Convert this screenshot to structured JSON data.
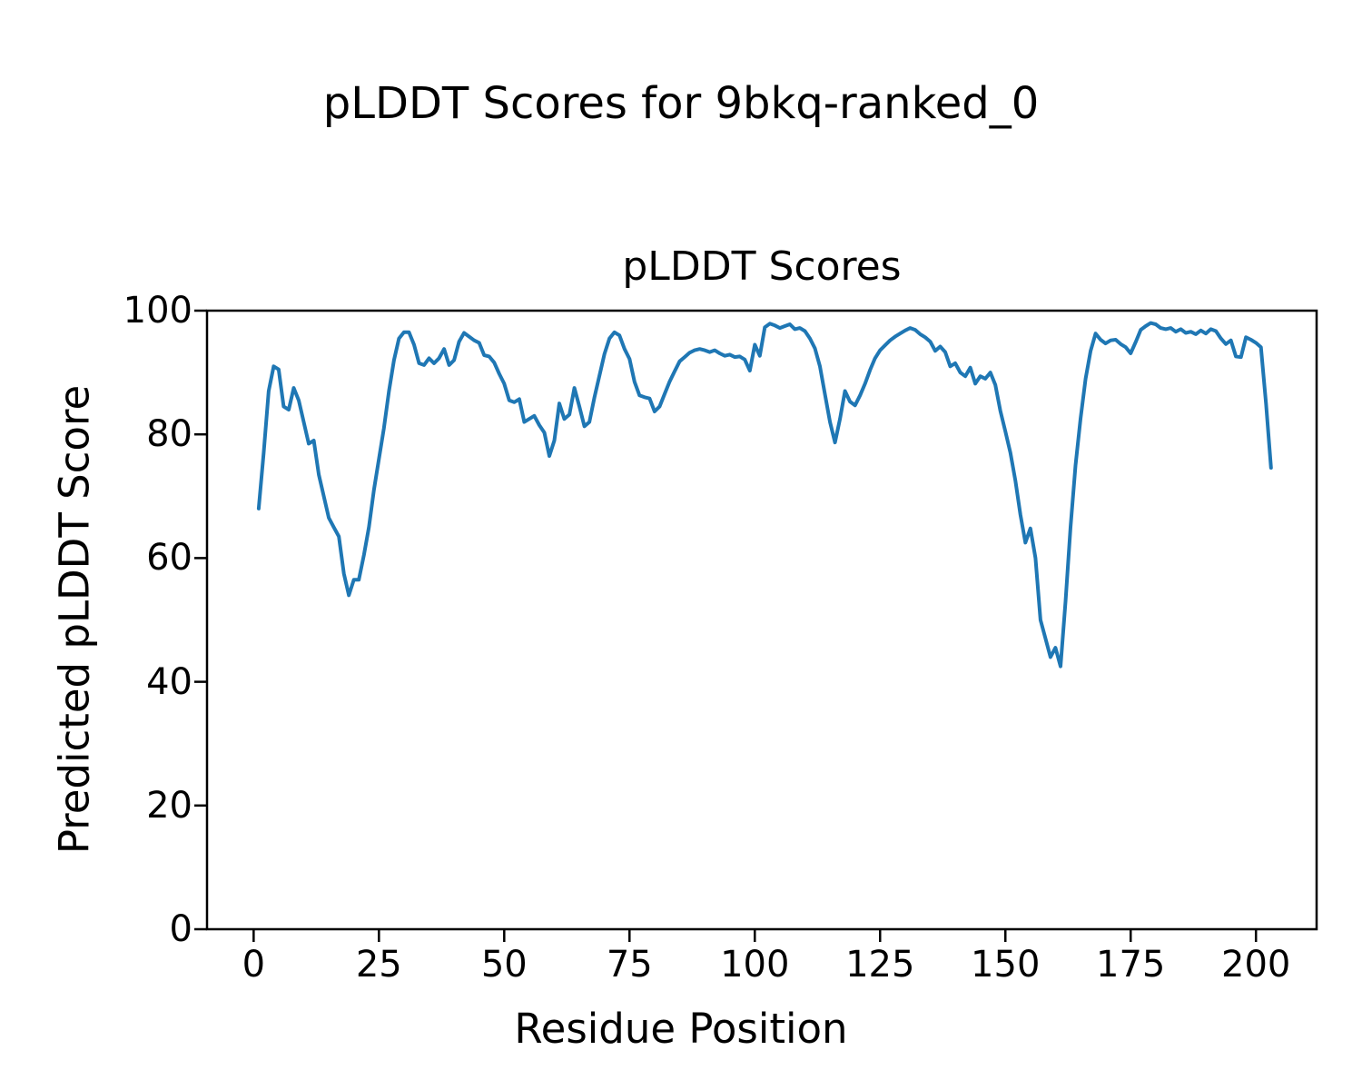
{
  "figure": {
    "suptitle": "pLDDT Scores for 9bkq-ranked_0",
    "background_color": "#ffffff",
    "text_color": "#000000"
  },
  "chart_data": {
    "type": "line",
    "title": "pLDDT Scores",
    "xlabel": "Residue Position",
    "ylabel": "Predicted pLDDT Score",
    "xlim": [
      -9.3,
      212.1
    ],
    "ylim": [
      0,
      100
    ],
    "x_ticks": [
      0,
      25,
      50,
      75,
      100,
      125,
      150,
      175,
      200
    ],
    "y_ticks": [
      0,
      20,
      40,
      60,
      80,
      100
    ],
    "grid": false,
    "legend": "none",
    "line_color": "#1f77b4",
    "line_width": 4,
    "spine_color": "#000000",
    "series": [
      {
        "name": "pLDDT",
        "x_start": 1,
        "x_step": 1,
        "values": [
          68,
          77,
          87,
          91,
          90.5,
          84.5,
          84,
          87.5,
          85.5,
          82,
          78.5,
          79,
          73.5,
          70,
          66.5,
          65,
          63.5,
          57.5,
          54,
          56.5,
          56.5,
          60.5,
          65,
          71,
          76,
          81,
          87,
          92,
          95.5,
          96.5,
          96.5,
          94.5,
          91.5,
          91.2,
          92.3,
          91.5,
          92.3,
          93.8,
          91.2,
          92,
          95,
          96.4,
          95.8,
          95.2,
          94.8,
          92.8,
          92.6,
          91.6,
          89.8,
          88.2,
          85.5,
          85.2,
          85.7,
          82,
          82.5,
          83,
          81.5,
          80.3,
          76.5,
          79,
          85,
          82.5,
          83.2,
          87.5,
          84.5,
          81.3,
          82,
          86,
          89.5,
          93,
          95.5,
          96.5,
          96,
          93.8,
          92.2,
          88.5,
          86.3,
          86,
          85.8,
          83.7,
          84.5,
          86.5,
          88.5,
          90.2,
          91.8,
          92.5,
          93.2,
          93.6,
          93.8,
          93.6,
          93.3,
          93.6,
          93.1,
          92.7,
          92.9,
          92.5,
          92.6,
          92.1,
          90.3,
          94.5,
          92.7,
          97.3,
          97.9,
          97.6,
          97.2,
          97.5,
          97.8,
          97,
          97.2,
          96.7,
          95.5,
          93.9,
          91,
          86.5,
          82,
          78.7,
          82.5,
          87,
          85.3,
          84.7,
          86.3,
          88.2,
          90.4,
          92.3,
          93.6,
          94.4,
          95.2,
          95.8,
          96.3,
          96.8,
          97.2,
          96.9,
          96.2,
          95.7,
          95,
          93.5,
          94.2,
          93.3,
          91,
          91.5,
          90,
          89.4,
          90.8,
          88.2,
          89.4,
          89,
          90,
          88,
          83.8,
          80.5,
          77,
          72.5,
          67,
          62.5,
          64.8,
          60,
          50,
          47,
          44,
          45.5,
          42.5,
          53,
          65,
          75,
          82.5,
          89,
          93.5,
          96.3,
          95.3,
          94.7,
          95.2,
          95.3,
          94.6,
          94.1,
          93.1,
          94.9,
          96.9,
          97.5,
          98,
          97.8,
          97.2,
          97,
          97.2,
          96.6,
          97,
          96.4,
          96.6,
          96.2,
          96.8,
          96.3,
          97,
          96.7,
          95.5,
          94.6,
          95.2,
          92.6,
          92.5,
          95.7,
          95.3,
          94.8,
          94.1,
          85,
          74.6
        ]
      }
    ]
  }
}
